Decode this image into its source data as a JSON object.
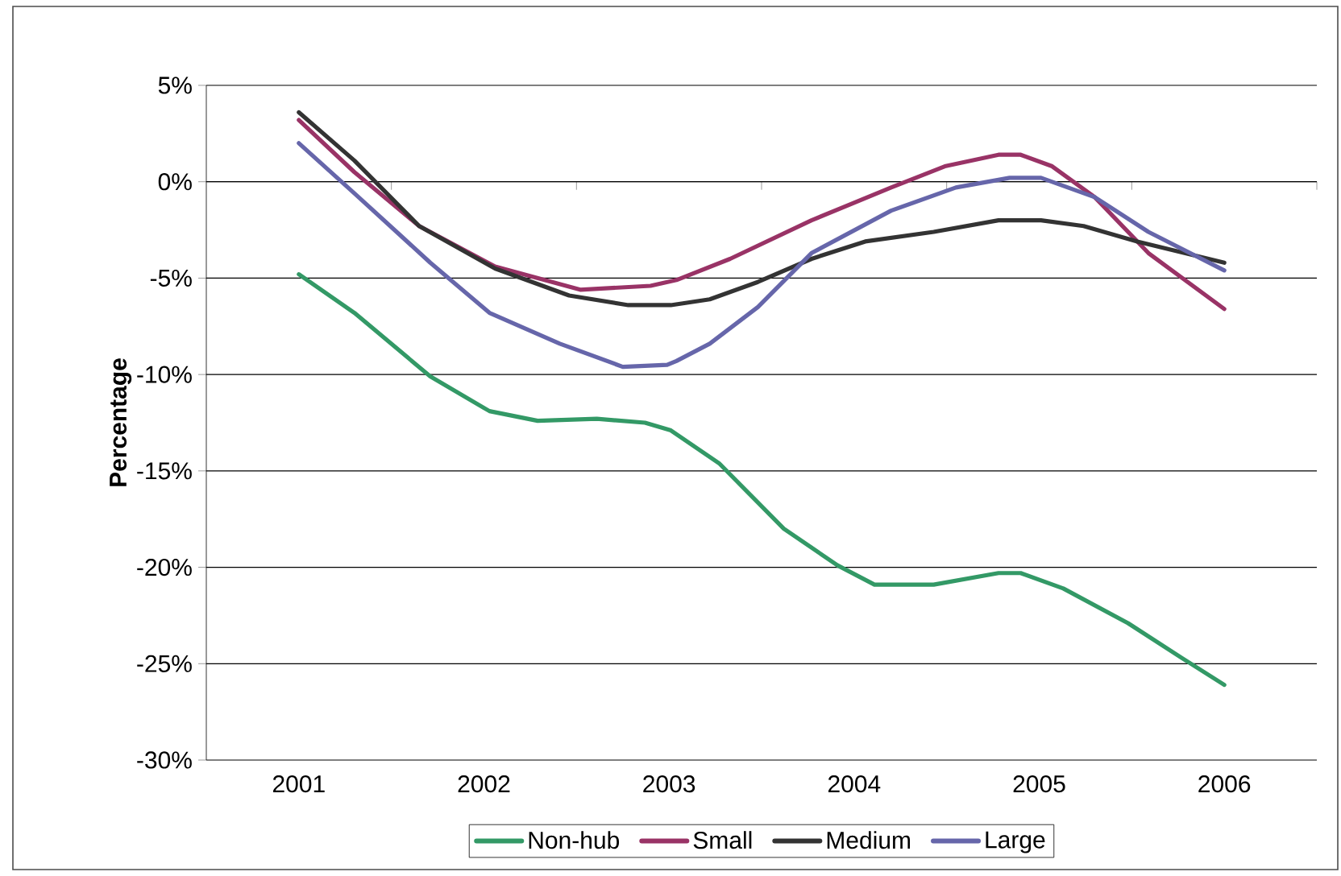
{
  "chart_data": {
    "type": "line",
    "ylabel": "Percentage",
    "xlim": [
      2000.5,
      2006.5
    ],
    "xticks": [
      {
        "value": 2001,
        "label": "2001"
      },
      {
        "value": 2002,
        "label": "2002"
      },
      {
        "value": 2003,
        "label": "2003"
      },
      {
        "value": 2004,
        "label": "2004"
      },
      {
        "value": 2005,
        "label": "2005"
      },
      {
        "value": 2006,
        "label": "2006"
      },
      {
        "value": 2001.5,
        "label": null
      },
      {
        "value": 2002.5,
        "label": null
      },
      {
        "value": 2003.5,
        "label": null
      },
      {
        "value": 2004.5,
        "label": null
      },
      {
        "value": 2005.5,
        "label": null
      },
      {
        "value": 2006.5,
        "label": null
      }
    ],
    "ylim": [
      -30,
      5
    ],
    "yticks": [
      {
        "value": 5,
        "label": "5%"
      },
      {
        "value": 0,
        "label": "0%"
      },
      {
        "value": -5,
        "label": "-5%"
      },
      {
        "value": -10,
        "label": "-10%"
      },
      {
        "value": -15,
        "label": "-15%"
      },
      {
        "value": -20,
        "label": "-20%"
      },
      {
        "value": -25,
        "label": "-25%"
      },
      {
        "value": -30,
        "label": "-30%"
      }
    ],
    "grid": "y",
    "legend": "bottom",
    "marker": "none",
    "line_style": "solid",
    "series": [
      {
        "name": "Non-hub",
        "color": "#339966",
        "x": [
          2001,
          2001.3,
          2001.71,
          2002.03,
          2002.29,
          2002.61,
          2002.87,
          2003.01,
          2003.27,
          2003.62,
          2003.91,
          2004.11,
          2004.43,
          2004.78,
          2004.9,
          2005.13,
          2005.48,
          2005.77,
          2006
        ],
        "values": [
          -4.8,
          -6.8,
          -10.1,
          -11.9,
          -12.4,
          -12.3,
          -12.5,
          -12.9,
          -14.6,
          -18.0,
          -19.9,
          -20.9,
          -20.9,
          -20.3,
          -20.3,
          -21.1,
          -22.9,
          -24.7,
          -26.1
        ]
      },
      {
        "name": "Small",
        "color": "#993366",
        "x": [
          2001,
          2001.3,
          2001.65,
          2002.06,
          2002.52,
          2002.9,
          2003.04,
          2003.33,
          2003.77,
          2004.2,
          2004.49,
          2004.78,
          2004.9,
          2005.07,
          2005.3,
          2005.59,
          2006
        ],
        "values": [
          3.2,
          0.5,
          -2.3,
          -4.4,
          -5.6,
          -5.4,
          -5.1,
          -4.0,
          -2.0,
          -0.3,
          0.8,
          1.4,
          1.4,
          0.8,
          -0.8,
          -3.7,
          -6.6
        ]
      },
      {
        "name": "Medium",
        "color": "#333333",
        "x": [
          2001,
          2001.3,
          2001.65,
          2002.06,
          2002.46,
          2002.78,
          2003.01,
          2003.22,
          2003.48,
          2003.77,
          2004.06,
          2004.43,
          2004.78,
          2005.01,
          2005.24,
          2005.53,
          2006
        ],
        "values": [
          3.6,
          1.1,
          -2.3,
          -4.5,
          -5.9,
          -6.4,
          -6.4,
          -6.1,
          -5.2,
          -4.0,
          -3.1,
          -2.6,
          -2.0,
          -2.0,
          -2.3,
          -3.1,
          -4.2
        ]
      },
      {
        "name": "Large",
        "color": "#6666aa",
        "x": [
          2001,
          2001.3,
          2001.71,
          2002.03,
          2002.41,
          2002.75,
          2002.99,
          2003.04,
          2003.22,
          2003.48,
          2003.77,
          2004.2,
          2004.55,
          2004.84,
          2005.01,
          2005.3,
          2005.59,
          2006
        ],
        "values": [
          2.0,
          -0.6,
          -4.2,
          -6.8,
          -8.4,
          -9.6,
          -9.5,
          -9.3,
          -8.4,
          -6.5,
          -3.7,
          -1.5,
          -0.3,
          0.2,
          0.2,
          -0.8,
          -2.6,
          -4.6
        ]
      }
    ]
  }
}
